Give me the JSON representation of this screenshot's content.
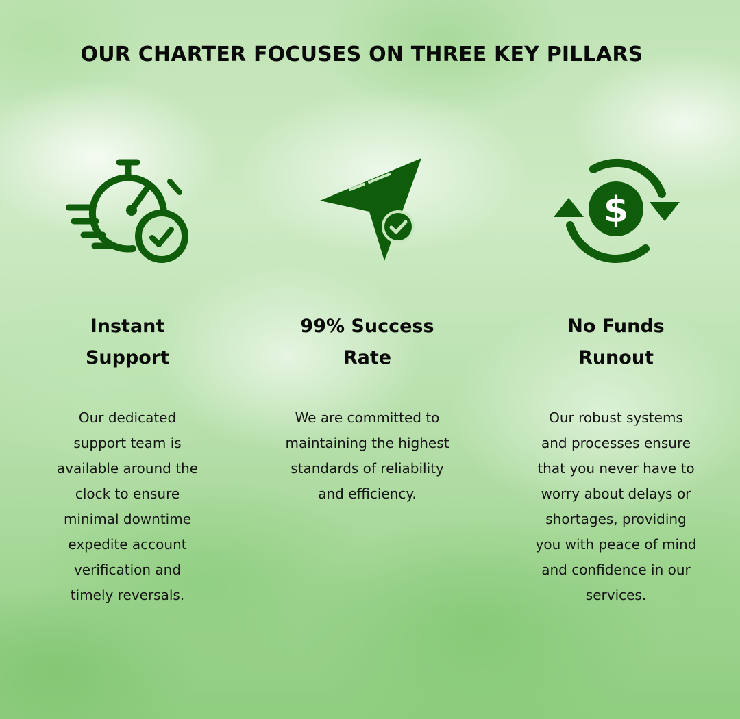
{
  "title": "OUR CHARTER FOCUSES ON THREE KEY PILLARS",
  "colors": {
    "icon_green": "#0f5c0a",
    "text": "#0a0a0a",
    "background": "#bfe3b4"
  },
  "pillars": [
    {
      "icon": "stopwatch-check-icon",
      "heading": "Instant Support",
      "description": "Our dedicated support team is available around the clock to ensure minimal downtime expedite account verification and timely reversals."
    },
    {
      "icon": "paper-plane-check-icon",
      "heading": "99% Success Rate",
      "description": "We are committed to maintaining the highest standards of reliability and efficiency."
    },
    {
      "icon": "dollar-cycle-icon",
      "heading": "No Funds Runout",
      "description": "Our robust systems and processes ensure that you never have to worry about delays or shortages, providing you with peace of mind and confidence in our services."
    }
  ]
}
